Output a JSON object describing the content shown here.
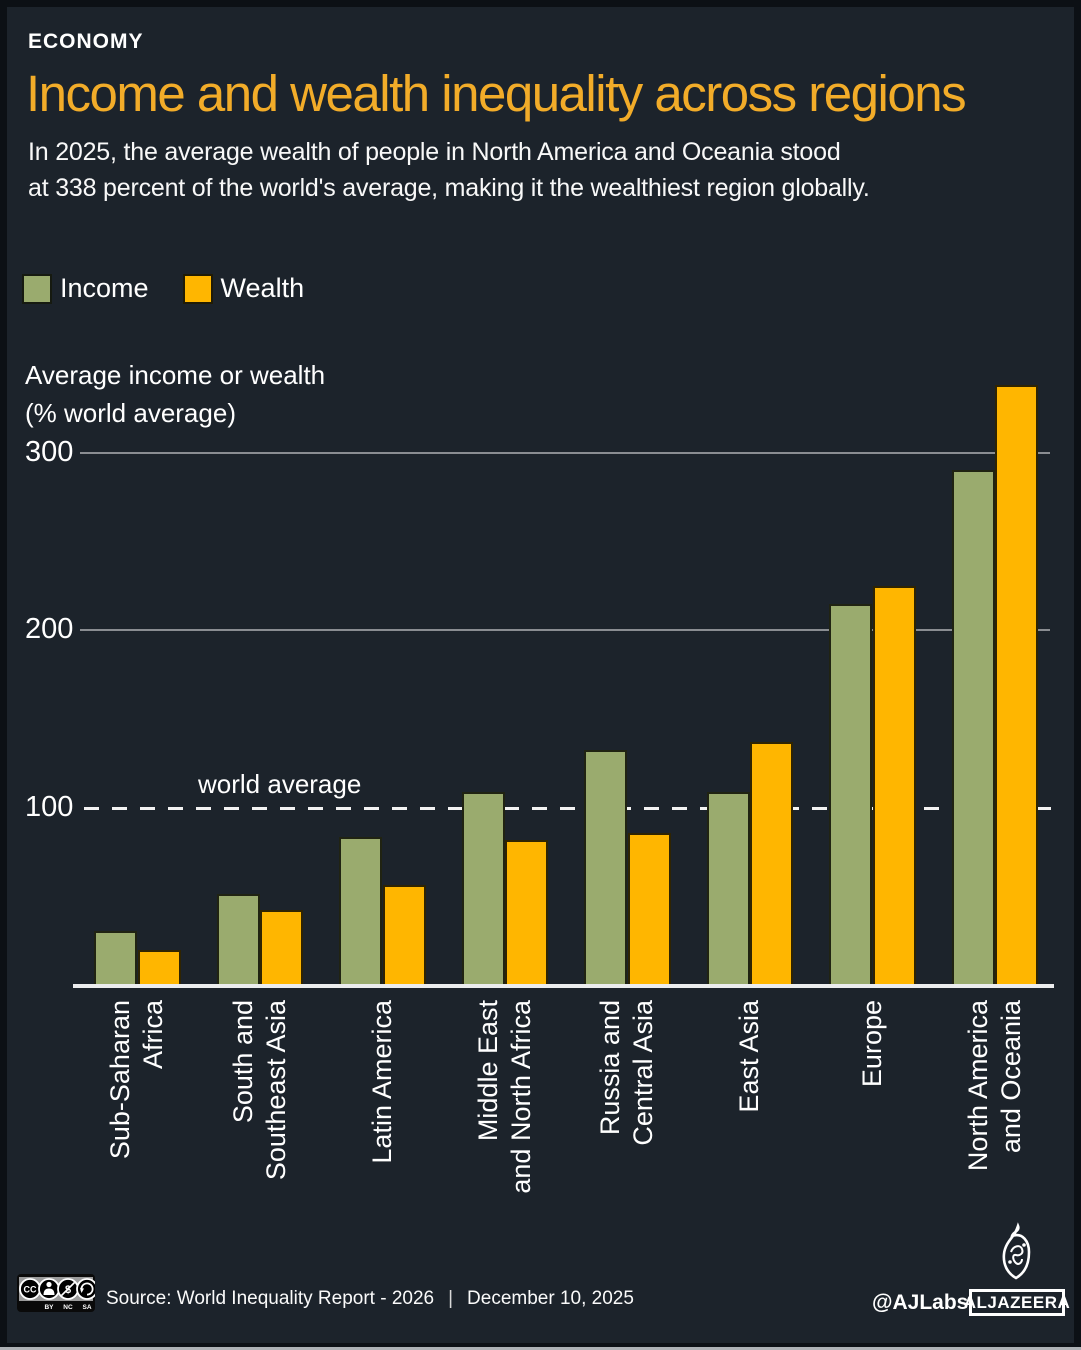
{
  "header": {
    "kicker": "ECONOMY",
    "title": "Income and wealth inequality across regions",
    "subtitle_line1": "In 2025, the average wealth of people in North America and Oceania stood",
    "subtitle_line2": "at 338 percent of the world's average, making it the wealthiest region globally."
  },
  "colors": {
    "background": "#1C232B",
    "title": "#F2AC29",
    "income": "#9AAB6E",
    "wealth": "#FFB600",
    "gridline": "#8A8D92",
    "baseline": "#ECEDEE"
  },
  "legend": {
    "income_label": "Income",
    "wealth_label": "Wealth"
  },
  "axis": {
    "unit_label_line1": "Average income or wealth",
    "unit_label_line2": "(% world average)",
    "world_average_label": "world average"
  },
  "chart_data": {
    "type": "bar",
    "categories": [
      [
        "Sub-Saharan",
        "Africa"
      ],
      [
        "South and",
        "Southeast Asia"
      ],
      [
        "Latin America"
      ],
      [
        "Middle East",
        "and North Africa"
      ],
      [
        "Russia and",
        "Central Asia"
      ],
      [
        "East Asia"
      ],
      [
        "Europe"
      ],
      [
        "North America",
        "and Oceania"
      ]
    ],
    "series": [
      {
        "name": "Income",
        "color": "#9AAB6E",
        "values": [
          31,
          52,
          84,
          109,
          133,
          109,
          215,
          290
        ]
      },
      {
        "name": "Wealth",
        "color": "#FFB600",
        "values": [
          20,
          43,
          57,
          82,
          86,
          137,
          225,
          338
        ]
      }
    ],
    "title": "Income and wealth inequality across regions",
    "xlabel": "",
    "ylabel": "Average income or wealth (% world average)",
    "ylim": [
      0,
      350
    ],
    "yticks": [
      {
        "value": 300,
        "style": "solid"
      },
      {
        "value": 200,
        "style": "solid"
      },
      {
        "value": 100,
        "style": "dashed",
        "annotation": "world average"
      }
    ],
    "grid": true,
    "legend_position": "top-left"
  },
  "footer": {
    "license": {
      "cc": "CC",
      "by": "BY",
      "nc": "NC",
      "sa": "SA"
    },
    "source": "Source: World Inequality Report - 2026",
    "separator": "|",
    "date": "December 10, 2025",
    "credit": "@AJLabs",
    "brand": "ALJAZEERA"
  }
}
